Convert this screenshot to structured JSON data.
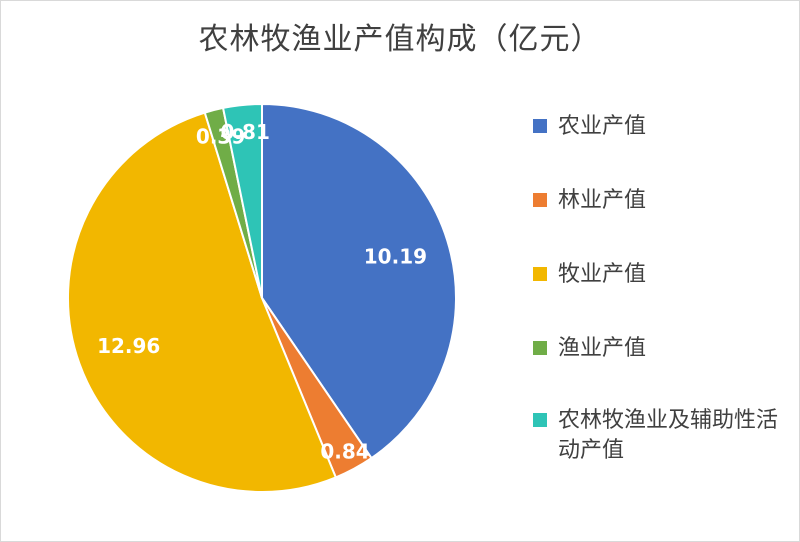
{
  "chart_data": {
    "type": "pie",
    "title": "农林牧渔业产值构成（亿元）",
    "slices": [
      {
        "label": "农业产值",
        "value": 10.19,
        "value_label": "10.19",
        "color": "#4472C4"
      },
      {
        "label": "林业产值",
        "value": 0.84,
        "value_label": "0.84",
        "color": "#ED7D31"
      },
      {
        "label": "牧业产值",
        "value": 12.96,
        "value_label": "12.96",
        "color": "#F2B700"
      },
      {
        "label": "渔业产值",
        "value": 0.39,
        "value_label": "0.39",
        "color": "#70AD47"
      },
      {
        "label": "农林牧渔业及辅助性活动产值",
        "value": 0.81,
        "value_label": "0.81",
        "color": "#2EC4B6"
      }
    ],
    "legend_position": "right",
    "data_label_color": "#ffffff"
  }
}
